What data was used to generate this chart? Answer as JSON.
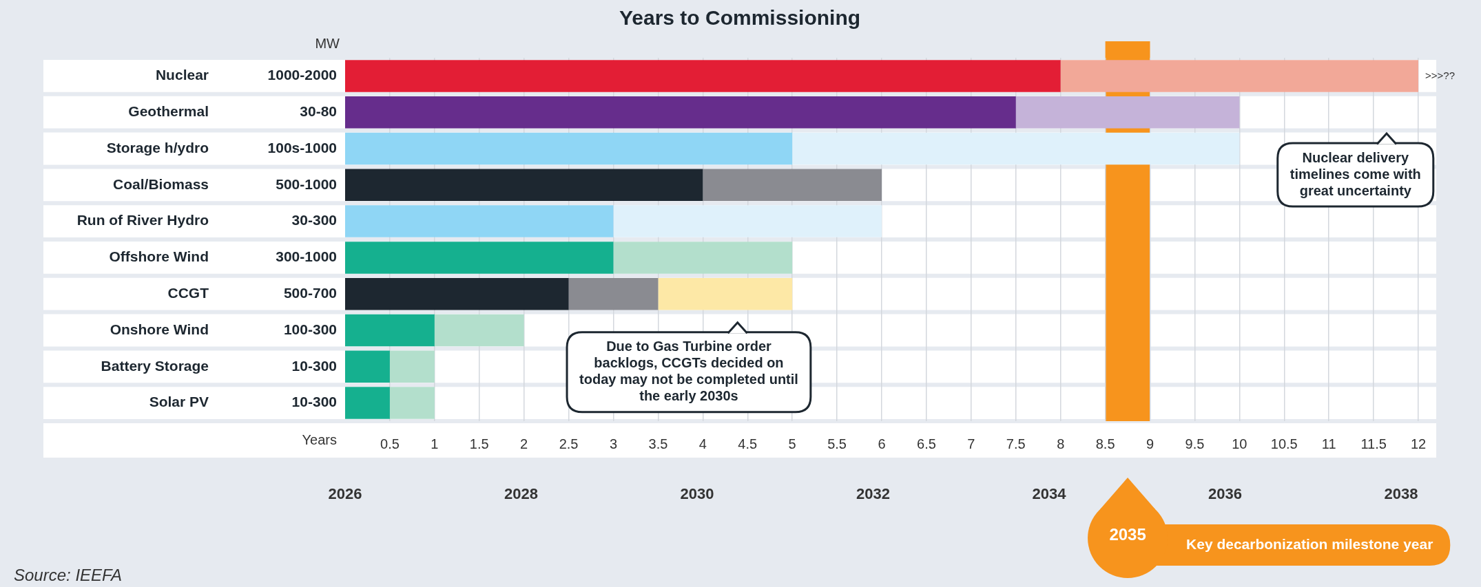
{
  "chart_data": {
    "type": "bar",
    "orientation": "horizontal",
    "stacked": true,
    "title": "Years to Commissioning",
    "xlabel": "Years",
    "ylabel": "MW",
    "categories": [
      "Nuclear",
      "Geothermal",
      "Storage h/ydro",
      "Coal/Biomass",
      "Run of River Hydro",
      "Offshore Wind",
      "CCGT",
      "Onshore Wind",
      "Battery Storage",
      "Solar PV"
    ],
    "y2_categories": [
      "1000-2000",
      "30-80",
      "100s-1000",
      "500-1000",
      "30-300",
      "300-1000",
      "500-700",
      "100-300",
      "10-300",
      "10-300"
    ],
    "series": [
      {
        "values": [
          8,
          7.5,
          5,
          4,
          3,
          3,
          2.5,
          1,
          0.5,
          0.5
        ],
        "colors": [
          "#e31e35",
          "#662d8c",
          "#8fd6f5",
          "#1d2730",
          "#8fd6f5",
          "#15b08f",
          "#1d2730",
          "#15b08f",
          "#15b08f",
          "#15b08f"
        ]
      },
      {
        "values": [
          4,
          2.5,
          5,
          2,
          3,
          2,
          1,
          1,
          0.5,
          0.5
        ],
        "colors": [
          "#f2a898",
          "#c5b3d9",
          "#dff1fb",
          "#8a8b91",
          "#dff1fb",
          "#b3dfcc",
          "#8a8b91",
          "#b3dfcc",
          "#b3dfcc",
          "#b3dfcc"
        ]
      },
      {
        "values": [
          null,
          null,
          null,
          null,
          null,
          null,
          1.5,
          null,
          null,
          null
        ],
        "colors": [
          null,
          null,
          null,
          null,
          null,
          null,
          "#fde8a6",
          null,
          null,
          null
        ]
      }
    ],
    "xlim": [
      0,
      12.2
    ],
    "xticks": [
      0.5,
      1,
      1.5,
      2,
      2.5,
      3,
      3.5,
      4,
      4.5,
      5,
      5.5,
      6,
      6.5,
      7,
      7.5,
      8,
      8.5,
      9,
      9.5,
      10,
      10.5,
      11,
      11.5,
      12
    ],
    "x2lim": [
      2026,
      2038.4
    ],
    "x2ticks": [
      2026,
      2028,
      2030,
      2032,
      2034,
      2036,
      2038
    ],
    "grid": "x",
    "bands": [
      {
        "axis": "x",
        "from": 8.5,
        "to": 9,
        "label": "2035",
        "color": "#f7941d"
      }
    ],
    "annotations": [
      {
        "text": ">>>??",
        "x": 12,
        "y": "Nuclear"
      },
      "Nuclear delivery timelines come with great uncertainty",
      "Due to Gas Turbine order backlogs, CCGTs decided on today may not be completed until the early 2030s",
      "Key decarbonization milestone year",
      "Source: IEEFA"
    ]
  }
}
